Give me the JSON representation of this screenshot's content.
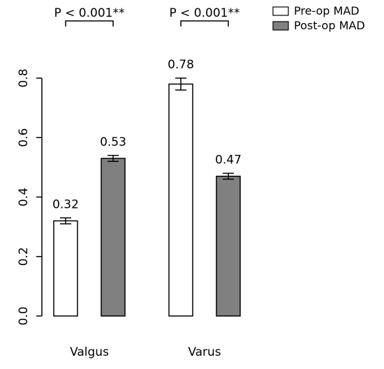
{
  "chart_data": {
    "type": "bar",
    "categories": [
      "Valgus",
      "Varus"
    ],
    "series": [
      {
        "name": "Pre-op MAD",
        "values": [
          0.32,
          0.78
        ],
        "errors": [
          0.01,
          0.02
        ],
        "color": "#ffffff"
      },
      {
        "name": "Post-op MAD",
        "values": [
          0.53,
          0.47
        ],
        "errors": [
          0.01,
          0.01
        ],
        "color": "#808080"
      }
    ],
    "data_labels": [
      [
        "0.32",
        "0.78"
      ],
      [
        "0.53",
        "0.47"
      ]
    ],
    "ylim": [
      0,
      0.8
    ],
    "yticks": [
      0.0,
      0.2,
      0.4,
      0.6,
      0.8
    ],
    "ytick_labels": [
      "0.0",
      "0.2",
      "0.4",
      "0.6",
      "0.8"
    ],
    "xlabel": "",
    "ylabel": "",
    "title": "",
    "legend_position": "top-right",
    "significance": [
      {
        "category": "Valgus",
        "text": "P < 0.001**"
      },
      {
        "category": "Varus",
        "text": "P < 0.001**"
      }
    ],
    "grid": false
  }
}
